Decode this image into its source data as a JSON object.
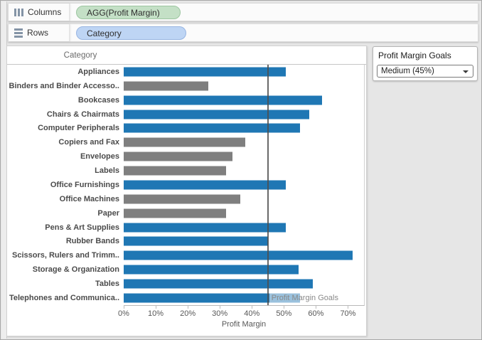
{
  "shelves": {
    "columns": {
      "label": "Columns",
      "pill": "AGG(Profit Margin)"
    },
    "rows": {
      "label": "Rows",
      "pill": "Category"
    }
  },
  "goal_panel": {
    "title": "Profit Margin Goals",
    "selected_option": "Medium (45%)"
  },
  "chart_data": {
    "type": "bar",
    "orientation": "horizontal",
    "header": "Category",
    "xlabel": "Profit Margin",
    "xlim": [
      0,
      75
    ],
    "x_ticks": [
      0,
      10,
      20,
      30,
      40,
      50,
      60,
      70
    ],
    "x_tick_labels": [
      "0%",
      "10%",
      "20%",
      "30%",
      "40%",
      "50%",
      "60%",
      "70%"
    ],
    "reference_line": {
      "value": 45,
      "label": "Profit Margin Goals"
    },
    "bars": [
      {
        "category": "Appliances",
        "value": 50.5,
        "color": "blue"
      },
      {
        "category": "Binders and Binder Accesso..",
        "value": 26.5,
        "color": "gray"
      },
      {
        "category": "Bookcases",
        "value": 62,
        "color": "blue"
      },
      {
        "category": "Chairs & Chairmats",
        "value": 58,
        "color": "blue"
      },
      {
        "category": "Computer Peripherals",
        "value": 55,
        "color": "blue"
      },
      {
        "category": "Copiers and Fax",
        "value": 38,
        "color": "gray"
      },
      {
        "category": "Envelopes",
        "value": 34,
        "color": "gray"
      },
      {
        "category": "Labels",
        "value": 32,
        "color": "gray"
      },
      {
        "category": "Office Furnishings",
        "value": 50.5,
        "color": "blue"
      },
      {
        "category": "Office Machines",
        "value": 36.5,
        "color": "gray"
      },
      {
        "category": "Paper",
        "value": 32,
        "color": "gray"
      },
      {
        "category": "Pens & Art Supplies",
        "value": 50.5,
        "color": "blue"
      },
      {
        "category": "Rubber Bands",
        "value": 45,
        "color": "blue"
      },
      {
        "category": "Scissors, Rulers and Trimm..",
        "value": 71.5,
        "color": "blue"
      },
      {
        "category": "Storage & Organization",
        "value": 54.5,
        "color": "blue"
      },
      {
        "category": "Tables",
        "value": 59,
        "color": "blue"
      },
      {
        "category": "Telephones and Communica..",
        "value": 55,
        "color": "blue"
      }
    ],
    "colors": {
      "blue": "#1f77b4",
      "gray": "#7f7f7f",
      "reference_line": "#4e4e4e"
    }
  }
}
